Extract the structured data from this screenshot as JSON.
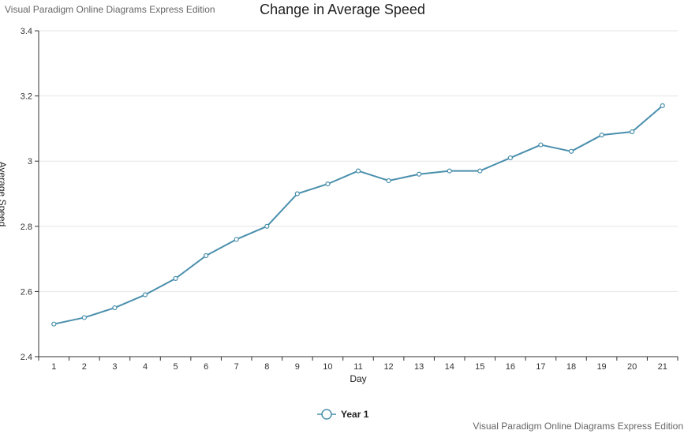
{
  "watermark": {
    "top_left": "Visual Paradigm Online Diagrams Express Edition",
    "bottom_right": "Visual Paradigm Online Diagrams Express Edition"
  },
  "colors": {
    "series": "#4a8fac",
    "grid": "#e6e6e6",
    "axis": "#333333"
  },
  "chart_data": {
    "type": "line",
    "title": "Change in Average Speed",
    "xlabel": "Day",
    "ylabel": "Average Speed",
    "categories": [
      "1",
      "2",
      "3",
      "4",
      "5",
      "6",
      "7",
      "8",
      "9",
      "10",
      "11",
      "12",
      "13",
      "14",
      "15",
      "16",
      "17",
      "18",
      "19",
      "20",
      "21"
    ],
    "series": [
      {
        "name": "Year 1",
        "values": [
          2.5,
          2.52,
          2.55,
          2.59,
          2.64,
          2.71,
          2.76,
          2.8,
          2.9,
          2.93,
          2.97,
          2.94,
          2.96,
          2.97,
          2.97,
          3.01,
          3.05,
          3.03,
          3.08,
          3.09,
          3.17
        ]
      }
    ],
    "ylim": [
      2.4,
      3.4
    ],
    "yticks": [
      "2.4",
      "2.6",
      "2.8",
      "3",
      "3.2",
      "3.4"
    ],
    "grid": true,
    "legend_position": "bottom"
  }
}
